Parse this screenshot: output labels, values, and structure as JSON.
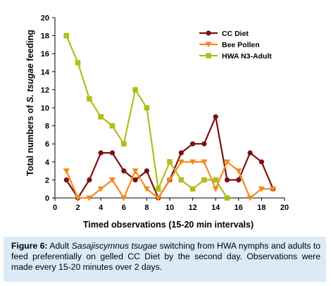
{
  "chart_data": {
    "type": "line",
    "xlabel": "Timed observations (15-20 min intervals)",
    "ylabel_prefix": "Total numbers of ",
    "ylabel_species": "S. tsugae",
    "ylabel_suffix": " feeding",
    "xlim": [
      0,
      20
    ],
    "ylim": [
      0,
      20
    ],
    "x_ticks": [
      "0",
      "2",
      "4",
      "6",
      "8",
      "10",
      "12",
      "14",
      "16",
      "18",
      "20"
    ],
    "y_ticks": [
      "0",
      "2",
      "4",
      "6",
      "8",
      "10",
      "12",
      "14",
      "16",
      "18",
      "20"
    ],
    "grid": false,
    "legend_position": "top-right",
    "series": [
      {
        "name": "CC Diet",
        "color": "#7b1010",
        "marker": "circle",
        "x": [
          1,
          2,
          3,
          4,
          5,
          6,
          7,
          8,
          9,
          10,
          11,
          12,
          13,
          14,
          15,
          16,
          17,
          18,
          19
        ],
        "y": [
          2,
          0,
          2,
          5,
          5,
          3,
          2,
          3,
          0,
          2,
          5,
          6,
          6,
          9,
          2,
          2,
          5,
          4,
          1
        ]
      },
      {
        "name": "Bee Pollen",
        "color": "#f5891f",
        "marker": "triangle-down",
        "x": [
          1,
          2,
          3,
          4,
          5,
          6,
          7,
          8,
          9,
          10,
          11,
          12,
          13,
          14,
          15,
          16,
          17,
          18,
          19
        ],
        "y": [
          3,
          0,
          0,
          1,
          2,
          0,
          3,
          1,
          0,
          2,
          4,
          4,
          4,
          1,
          4,
          3,
          0,
          1,
          1
        ]
      },
      {
        "name": "HWA N3-Adult",
        "color": "#b2bd1c",
        "marker": "square",
        "x": [
          1,
          2,
          3,
          4,
          5,
          6,
          7,
          8,
          9,
          10,
          11,
          12,
          13,
          14,
          15
        ],
        "y": [
          18,
          15,
          11,
          9,
          8,
          6,
          12,
          10,
          1,
          4,
          2,
          1,
          2,
          2,
          0
        ]
      }
    ]
  },
  "caption": {
    "figure_label": "Figure 6:",
    "text_before": " Adult ",
    "species": "Sasajiscymnus tsugae",
    "text_after": " switching from HWA nymphs and adults to feed preferentially on gelled CC Diet by the second day. Observations were made every 15-20 minutes over 2 days."
  }
}
